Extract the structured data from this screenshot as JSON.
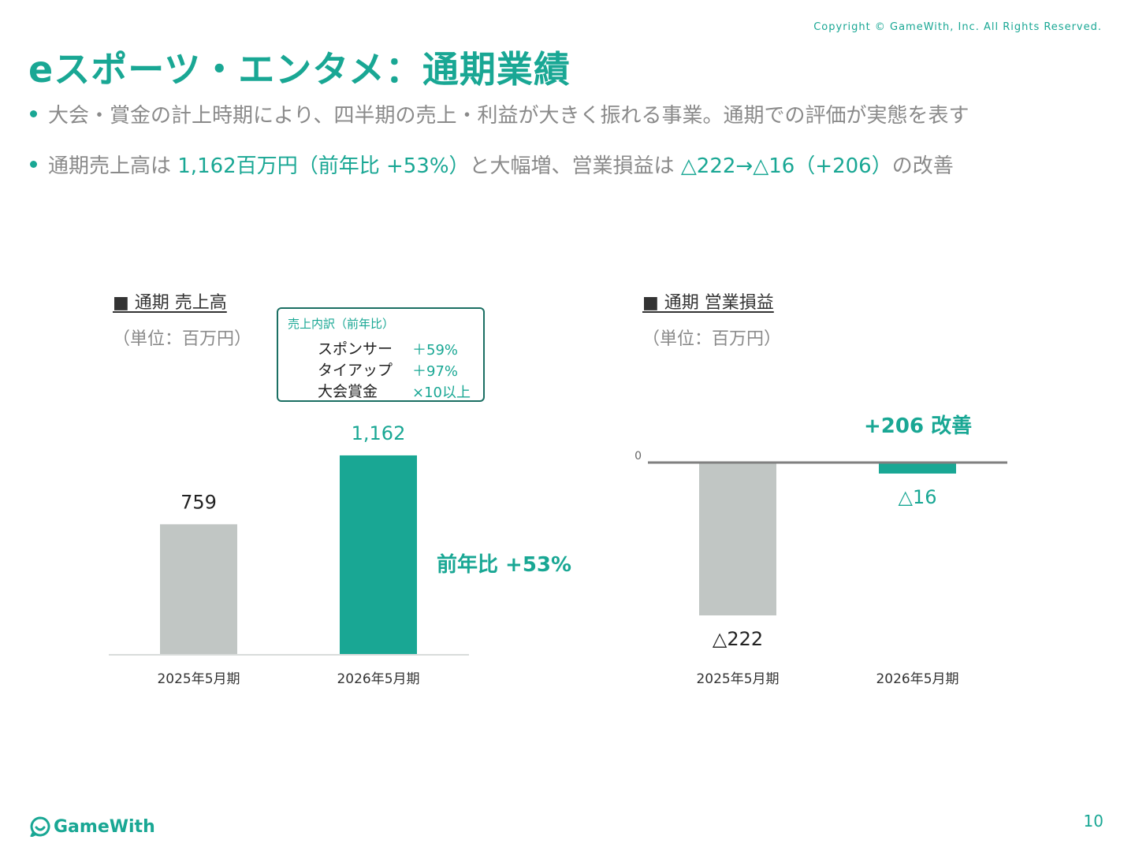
{
  "copyright": "Copyright © GameWith, Inc. All Rights Reserved.",
  "title": "eスポーツ・エンタメ：通期業績",
  "bullets": [
    {
      "text": "大会・賞金の計上時期により、四半期の売上・利益が大きく振れる事業。通期での評価が実態を表す"
    },
    {
      "parts": [
        "通期売上高は ",
        "1,162百万円（前年比 +53%）",
        "と大幅増、営業損益は ",
        "△222→△16（+206）",
        "の改善"
      ]
    }
  ],
  "breakdown": {
    "title": "売上内訳（前年比）",
    "rows": [
      {
        "label": "スポンサー",
        "value": "＋59%"
      },
      {
        "label": "タイアップ",
        "value": "＋97%"
      },
      {
        "label": "大会賞金",
        "value": "×10以上"
      }
    ]
  },
  "colors": {
    "accent": "#19a794",
    "previous": "#c1c6c4",
    "axis": "#808080",
    "dark_border": "#1b6f63"
  },
  "chart_data": [
    {
      "type": "bar",
      "title": "■ 通期 売上高",
      "subtitle": "（単位：百万円）",
      "categories": [
        "2025年5月期",
        "2026年5月期"
      ],
      "values": [
        759,
        1162
      ],
      "value_labels": [
        "759",
        "1,162"
      ],
      "ylim": [
        0,
        1300
      ],
      "annotation": "前年比 +53%"
    },
    {
      "type": "bar",
      "title": "■ 通期 営業損益",
      "subtitle": "（単位：百万円）",
      "categories": [
        "2025年5月期",
        "2026年5月期"
      ],
      "values": [
        -222,
        -16
      ],
      "value_labels": [
        "△222",
        "△16"
      ],
      "zero_label": "0",
      "ylim": [
        -230,
        0
      ],
      "annotation": "+206 改善"
    }
  ],
  "page_number": "10",
  "logo_text": "GameWith"
}
